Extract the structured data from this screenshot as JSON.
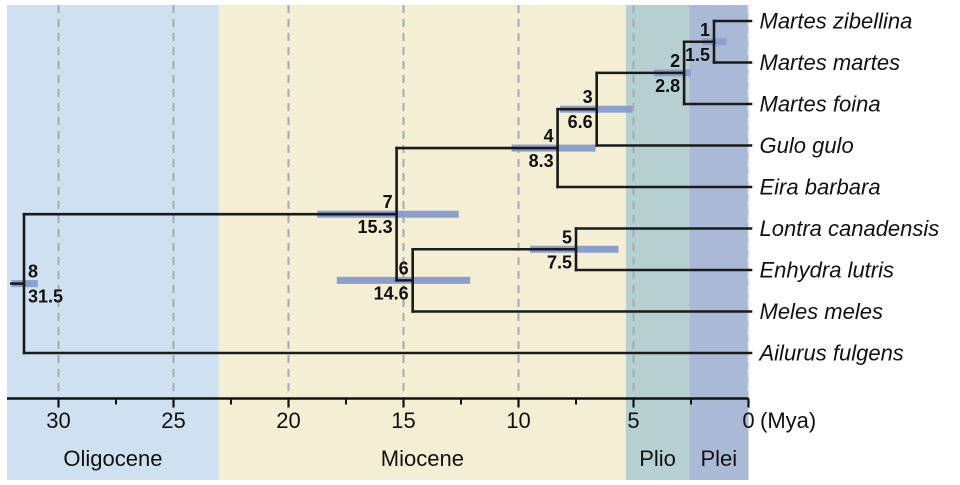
{
  "figure": {
    "kind": "dated phylogenetic tree (chronogram) of mustelids with geological epochs",
    "unit_label": "(Mya)"
  },
  "chart_data": {
    "type": "tree",
    "title": "",
    "xlabel": "(Mya)",
    "axis": {
      "unit": "(Mya)",
      "range_mya": [
        32.2,
        0
      ],
      "major_ticks": [
        30,
        25,
        20,
        15,
        10,
        5,
        0
      ],
      "minor_ticks": [
        27.5,
        22.5,
        17.5,
        12.5,
        7.5,
        2.5
      ],
      "gridline_ages": [
        30,
        25,
        20,
        15,
        10,
        5,
        0
      ],
      "grid": "dashed"
    },
    "taxa": [
      {
        "id": "t0",
        "label": "Martes zibellina"
      },
      {
        "id": "t1",
        "label": "Martes martes"
      },
      {
        "id": "t2",
        "label": "Martes foina"
      },
      {
        "id": "t3",
        "label": "Gulo gulo"
      },
      {
        "id": "t4",
        "label": "Eira barbara"
      },
      {
        "id": "t5",
        "label": "Lontra canadensis"
      },
      {
        "id": "t6",
        "label": "Enhydra lutris"
      },
      {
        "id": "t7",
        "label": "Meles meles"
      },
      {
        "id": "t8",
        "label": "Ailurus fulgens"
      }
    ],
    "root": "n8",
    "nodes": [
      {
        "id": "n1",
        "number": "1",
        "age": 1.5,
        "age_label": "1.5",
        "ci": [
          2.0,
          0.95
        ],
        "children": [
          "t0",
          "t1"
        ],
        "label_side": "left"
      },
      {
        "id": "n2",
        "number": "2",
        "age": 2.8,
        "age_label": "2.8",
        "ci": [
          4.1,
          2.5
        ],
        "children": [
          "n1",
          "t2"
        ],
        "label_side": "left"
      },
      {
        "id": "n3",
        "number": "3",
        "age": 6.6,
        "age_label": "6.6",
        "ci": [
          8.2,
          5.05
        ],
        "children": [
          "n2",
          "t3"
        ],
        "label_side": "left"
      },
      {
        "id": "n4",
        "number": "4",
        "age": 8.3,
        "age_label": "8.3",
        "ci": [
          10.3,
          6.65
        ],
        "children": [
          "n3",
          "t4"
        ],
        "label_side": "left"
      },
      {
        "id": "n5",
        "number": "5",
        "age": 7.5,
        "age_label": "7.5",
        "ci": [
          9.5,
          5.65
        ],
        "children": [
          "t5",
          "t6"
        ],
        "label_side": "left"
      },
      {
        "id": "n6",
        "number": "6",
        "age": 14.6,
        "age_label": "14.6",
        "ci": [
          17.9,
          12.1
        ],
        "children": [
          "n5",
          "t7"
        ],
        "label_side": "left"
      },
      {
        "id": "n7",
        "number": "7",
        "age": 15.3,
        "age_label": "15.3",
        "ci": [
          18.75,
          12.6
        ],
        "children": [
          "n4",
          "n6"
        ],
        "label_side": "left"
      },
      {
        "id": "n8",
        "number": "8",
        "age": 31.5,
        "age_label": "31.5",
        "ci": [
          32.05,
          30.9
        ],
        "children": [
          "n7",
          "t8"
        ],
        "label_side": "right",
        "root_stub_age": 32.05
      }
    ],
    "epochs": [
      {
        "name": "Oligocene",
        "from": 32.24,
        "to": 23.03,
        "color": "#cfe0f1"
      },
      {
        "name": "Miocene",
        "from": 23.03,
        "to": 5.33,
        "color": "#f4eed4"
      },
      {
        "name": "Plio",
        "from": 5.33,
        "to": 2.58,
        "color": "#b6d0d2"
      },
      {
        "name": "Plei",
        "from": 2.58,
        "to": 0,
        "color": "#aab9d6"
      }
    ],
    "colors": {
      "branch": "#1a1a1a",
      "ci_bar": "#8c9fcc",
      "age_text": "#a32020",
      "node_number": "#111111",
      "gridline": "#a6abb2",
      "gridline_light": "#e2e6ec",
      "axis": "#111111",
      "text": "#111111",
      "background": "#ffffff"
    },
    "legend": null
  }
}
